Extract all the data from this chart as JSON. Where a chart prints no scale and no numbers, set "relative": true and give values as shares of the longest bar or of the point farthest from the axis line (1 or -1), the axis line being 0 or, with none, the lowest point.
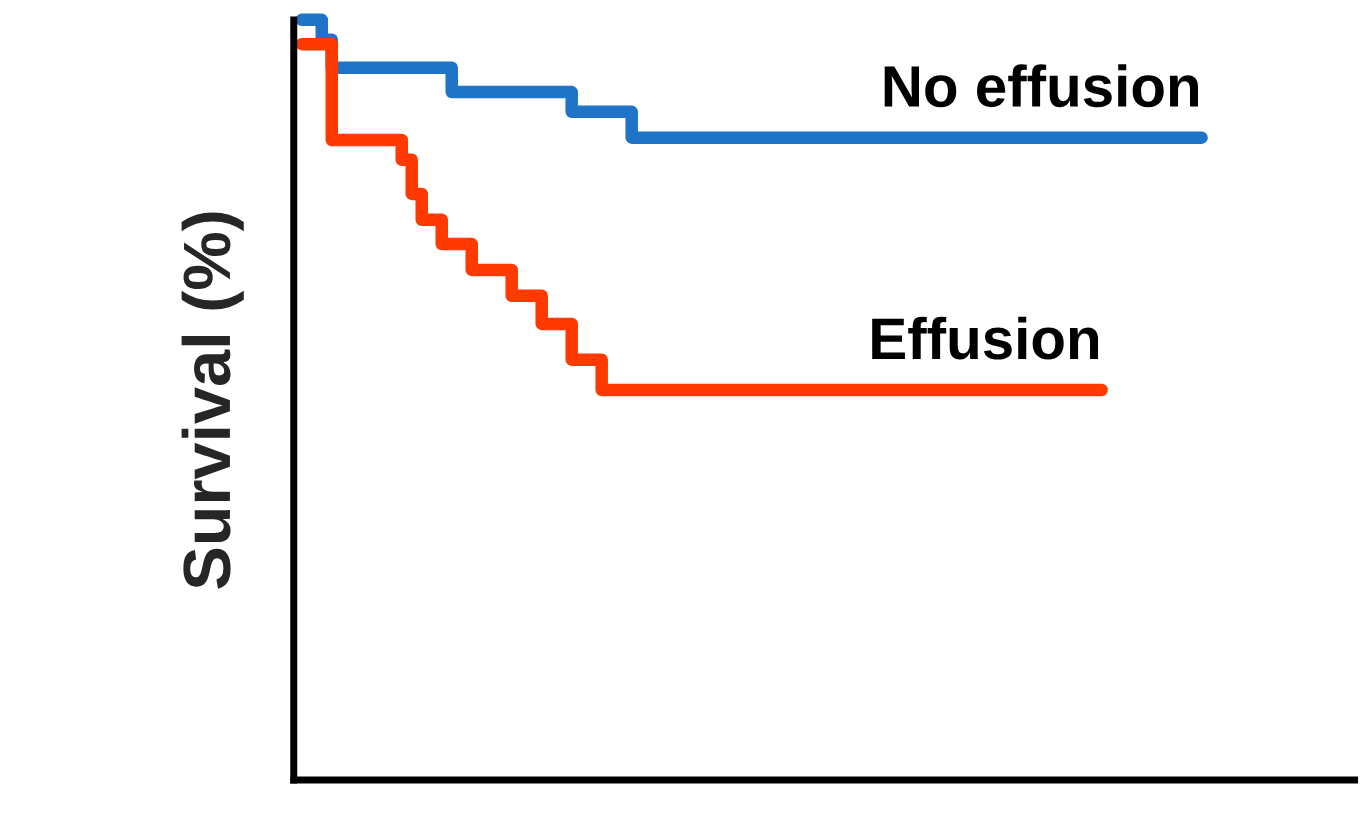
{
  "chart_data": {
    "type": "step",
    "relative": true,
    "ylabel": "Survival (%)",
    "legend": false,
    "categories": [
      null,
      null,
      null,
      null,
      null,
      null,
      null,
      null,
      null,
      null,
      null,
      null,
      null,
      null,
      null,
      null,
      null,
      null,
      null,
      null,
      null,
      null,
      null,
      null,
      null,
      null,
      null,
      null,
      null,
      null,
      null,
      null,
      null,
      null,
      null,
      null,
      null,
      null,
      null,
      null,
      null,
      null,
      null,
      null,
      null,
      null,
      null,
      null,
      null,
      null,
      null,
      null,
      null,
      null,
      null,
      null,
      null,
      null,
      null,
      null,
      null,
      null,
      null,
      null,
      null,
      null,
      null,
      null,
      null,
      null,
      null,
      null,
      null,
      null,
      null,
      null,
      null,
      null,
      null,
      null,
      null,
      null,
      null,
      null,
      null,
      null,
      null,
      null,
      null,
      null,
      null
    ],
    "series": [
      {
        "name": "No effusion",
        "color": "#1f74c8",
        "values": [
          1.0,
          1.0,
          0.974,
          0.937,
          0.937,
          0.937,
          0.937,
          0.937,
          0.937,
          0.937,
          0.937,
          0.937,
          0.937,
          0.937,
          0.937,
          0.905,
          0.905,
          0.905,
          0.905,
          0.905,
          0.905,
          0.905,
          0.905,
          0.905,
          0.905,
          0.905,
          0.905,
          0.879,
          0.879,
          0.879,
          0.879,
          0.879,
          0.879,
          0.845,
          0.845,
          0.845,
          0.845,
          0.845,
          0.845,
          0.845,
          0.845,
          0.845,
          0.845,
          0.845,
          0.845,
          0.845,
          0.845,
          0.845,
          0.845,
          0.845,
          0.845,
          0.845,
          0.845,
          0.845,
          0.845,
          0.845,
          0.845,
          0.845,
          0.845,
          0.845,
          0.845,
          0.845,
          0.845,
          0.845,
          0.845,
          0.845,
          0.845,
          0.845,
          0.845,
          0.845,
          0.845,
          0.845,
          0.845,
          0.845,
          0.845,
          0.845,
          0.845,
          0.845,
          0.845,
          0.845,
          0.845,
          0.845,
          0.845,
          0.845,
          0.845,
          0.845,
          0.845,
          0.845,
          0.845,
          0.845,
          0.845
        ]
      },
      {
        "name": "Effusion",
        "color": "#ff3a00",
        "values": [
          0.968,
          0.968,
          0.968,
          0.842,
          0.842,
          0.842,
          0.842,
          0.842,
          0.842,
          0.842,
          0.816,
          0.771,
          0.737,
          0.737,
          0.705,
          0.705,
          0.705,
          0.671,
          0.671,
          0.671,
          0.671,
          0.637,
          0.637,
          0.637,
          0.6,
          0.6,
          0.6,
          0.553,
          0.553,
          0.553,
          0.513,
          0.513,
          0.513,
          0.513,
          0.513,
          0.513,
          0.513,
          0.513,
          0.513,
          0.513,
          0.513,
          0.513,
          0.513,
          0.513,
          0.513,
          0.513,
          0.513,
          0.513,
          0.513,
          0.513,
          0.513,
          0.513,
          0.513,
          0.513,
          0.513,
          0.513,
          0.513,
          0.513,
          0.513,
          0.513,
          0.513,
          0.513,
          0.513,
          0.513,
          0.513,
          0.513,
          0.513,
          0.513,
          0.513,
          0.513,
          0.513,
          0.513,
          0.513,
          0.513,
          0.513,
          0.513,
          0.513,
          0.513,
          0.513,
          0.513,
          0.513,
          null,
          null,
          null,
          null,
          null,
          null,
          null,
          null,
          null,
          null
        ]
      }
    ]
  }
}
